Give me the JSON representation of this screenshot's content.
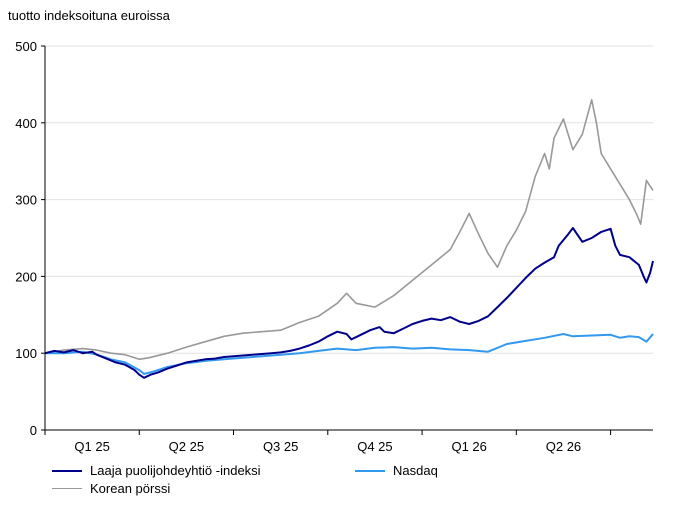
{
  "chart_data": {
    "type": "line",
    "ylabel": "tuotto indeksoituna euroissa",
    "ylim": [
      0,
      500
    ],
    "yticks": [
      "0",
      "100",
      "200",
      "300",
      "400",
      "500"
    ],
    "x_categories": [
      "Q1 25",
      "Q2 25",
      "Q3 25",
      "Q4 25",
      "Q1 26",
      "Q2 26"
    ],
    "grid": "horizontal",
    "legend_position": "bottom",
    "series": [
      {
        "name": "Laaja puolijohdeyhtiö -indeksi",
        "color": "#00008b",
        "points": [
          [
            0,
            100
          ],
          [
            0.1,
            103
          ],
          [
            0.2,
            101
          ],
          [
            0.3,
            104
          ],
          [
            0.4,
            100
          ],
          [
            0.5,
            102
          ],
          [
            0.55,
            98
          ],
          [
            0.65,
            93
          ],
          [
            0.75,
            88
          ],
          [
            0.85,
            85
          ],
          [
            0.95,
            78
          ],
          [
            1.0,
            72
          ],
          [
            1.05,
            68
          ],
          [
            1.12,
            72
          ],
          [
            1.2,
            75
          ],
          [
            1.3,
            80
          ],
          [
            1.4,
            84
          ],
          [
            1.5,
            88
          ],
          [
            1.6,
            90
          ],
          [
            1.7,
            92
          ],
          [
            1.8,
            93
          ],
          [
            1.9,
            95
          ],
          [
            2.0,
            96
          ],
          [
            2.1,
            97
          ],
          [
            2.2,
            98
          ],
          [
            2.3,
            99
          ],
          [
            2.4,
            100
          ],
          [
            2.5,
            101
          ],
          [
            2.6,
            103
          ],
          [
            2.7,
            106
          ],
          [
            2.8,
            110
          ],
          [
            2.9,
            115
          ],
          [
            3.0,
            122
          ],
          [
            3.1,
            128
          ],
          [
            3.2,
            125
          ],
          [
            3.25,
            118
          ],
          [
            3.35,
            124
          ],
          [
            3.45,
            130
          ],
          [
            3.55,
            134
          ],
          [
            3.6,
            128
          ],
          [
            3.7,
            126
          ],
          [
            3.8,
            132
          ],
          [
            3.9,
            138
          ],
          [
            4.0,
            142
          ],
          [
            4.1,
            145
          ],
          [
            4.2,
            143
          ],
          [
            4.3,
            147
          ],
          [
            4.4,
            141
          ],
          [
            4.5,
            138
          ],
          [
            4.6,
            142
          ],
          [
            4.7,
            148
          ],
          [
            4.8,
            160
          ],
          [
            4.9,
            172
          ],
          [
            5.0,
            185
          ],
          [
            5.1,
            198
          ],
          [
            5.2,
            210
          ],
          [
            5.3,
            218
          ],
          [
            5.4,
            225
          ],
          [
            5.45,
            240
          ],
          [
            5.55,
            255
          ],
          [
            5.6,
            263
          ],
          [
            5.7,
            245
          ],
          [
            5.8,
            250
          ],
          [
            5.9,
            258
          ],
          [
            6.0,
            262
          ],
          [
            6.05,
            240
          ],
          [
            6.1,
            228
          ],
          [
            6.2,
            225
          ],
          [
            6.3,
            215
          ],
          [
            6.35,
            200
          ],
          [
            6.38,
            192
          ],
          [
            6.42,
            205
          ],
          [
            6.45,
            220
          ]
        ]
      },
      {
        "name": "Nasdaq",
        "color": "#3399ee",
        "points": [
          [
            0,
            100
          ],
          [
            0.2,
            100
          ],
          [
            0.4,
            102
          ],
          [
            0.55,
            98
          ],
          [
            0.7,
            92
          ],
          [
            0.85,
            88
          ],
          [
            1.0,
            78
          ],
          [
            1.05,
            73
          ],
          [
            1.15,
            76
          ],
          [
            1.3,
            82
          ],
          [
            1.5,
            87
          ],
          [
            1.7,
            90
          ],
          [
            1.9,
            92
          ],
          [
            2.1,
            94
          ],
          [
            2.3,
            96
          ],
          [
            2.5,
            98
          ],
          [
            2.7,
            100
          ],
          [
            2.9,
            103
          ],
          [
            3.1,
            106
          ],
          [
            3.3,
            104
          ],
          [
            3.5,
            107
          ],
          [
            3.7,
            108
          ],
          [
            3.9,
            106
          ],
          [
            4.1,
            107
          ],
          [
            4.3,
            105
          ],
          [
            4.5,
            104
          ],
          [
            4.7,
            102
          ],
          [
            4.9,
            112
          ],
          [
            5.1,
            116
          ],
          [
            5.3,
            120
          ],
          [
            5.5,
            125
          ],
          [
            5.6,
            122
          ],
          [
            5.8,
            123
          ],
          [
            6.0,
            124
          ],
          [
            6.1,
            120
          ],
          [
            6.2,
            122
          ],
          [
            6.3,
            121
          ],
          [
            6.38,
            115
          ],
          [
            6.45,
            125
          ]
        ]
      },
      {
        "name": "Korean pörssi",
        "color": "#999999",
        "points": [
          [
            0,
            100
          ],
          [
            0.2,
            104
          ],
          [
            0.4,
            106
          ],
          [
            0.55,
            104
          ],
          [
            0.7,
            100
          ],
          [
            0.85,
            98
          ],
          [
            1.0,
            92
          ],
          [
            1.1,
            94
          ],
          [
            1.3,
            100
          ],
          [
            1.5,
            108
          ],
          [
            1.7,
            115
          ],
          [
            1.9,
            122
          ],
          [
            2.1,
            126
          ],
          [
            2.3,
            128
          ],
          [
            2.5,
            130
          ],
          [
            2.7,
            140
          ],
          [
            2.9,
            148
          ],
          [
            3.1,
            165
          ],
          [
            3.2,
            178
          ],
          [
            3.3,
            165
          ],
          [
            3.5,
            160
          ],
          [
            3.7,
            175
          ],
          [
            3.9,
            195
          ],
          [
            4.1,
            215
          ],
          [
            4.3,
            235
          ],
          [
            4.4,
            258
          ],
          [
            4.5,
            282
          ],
          [
            4.6,
            255
          ],
          [
            4.7,
            230
          ],
          [
            4.8,
            212
          ],
          [
            4.9,
            240
          ],
          [
            5.0,
            260
          ],
          [
            5.1,
            285
          ],
          [
            5.2,
            330
          ],
          [
            5.3,
            360
          ],
          [
            5.35,
            340
          ],
          [
            5.4,
            380
          ],
          [
            5.5,
            405
          ],
          [
            5.6,
            365
          ],
          [
            5.7,
            385
          ],
          [
            5.8,
            430
          ],
          [
            5.85,
            400
          ],
          [
            5.9,
            360
          ],
          [
            6.0,
            340
          ],
          [
            6.1,
            320
          ],
          [
            6.2,
            300
          ],
          [
            6.28,
            280
          ],
          [
            6.32,
            268
          ],
          [
            6.38,
            325
          ],
          [
            6.45,
            312
          ]
        ]
      }
    ]
  }
}
